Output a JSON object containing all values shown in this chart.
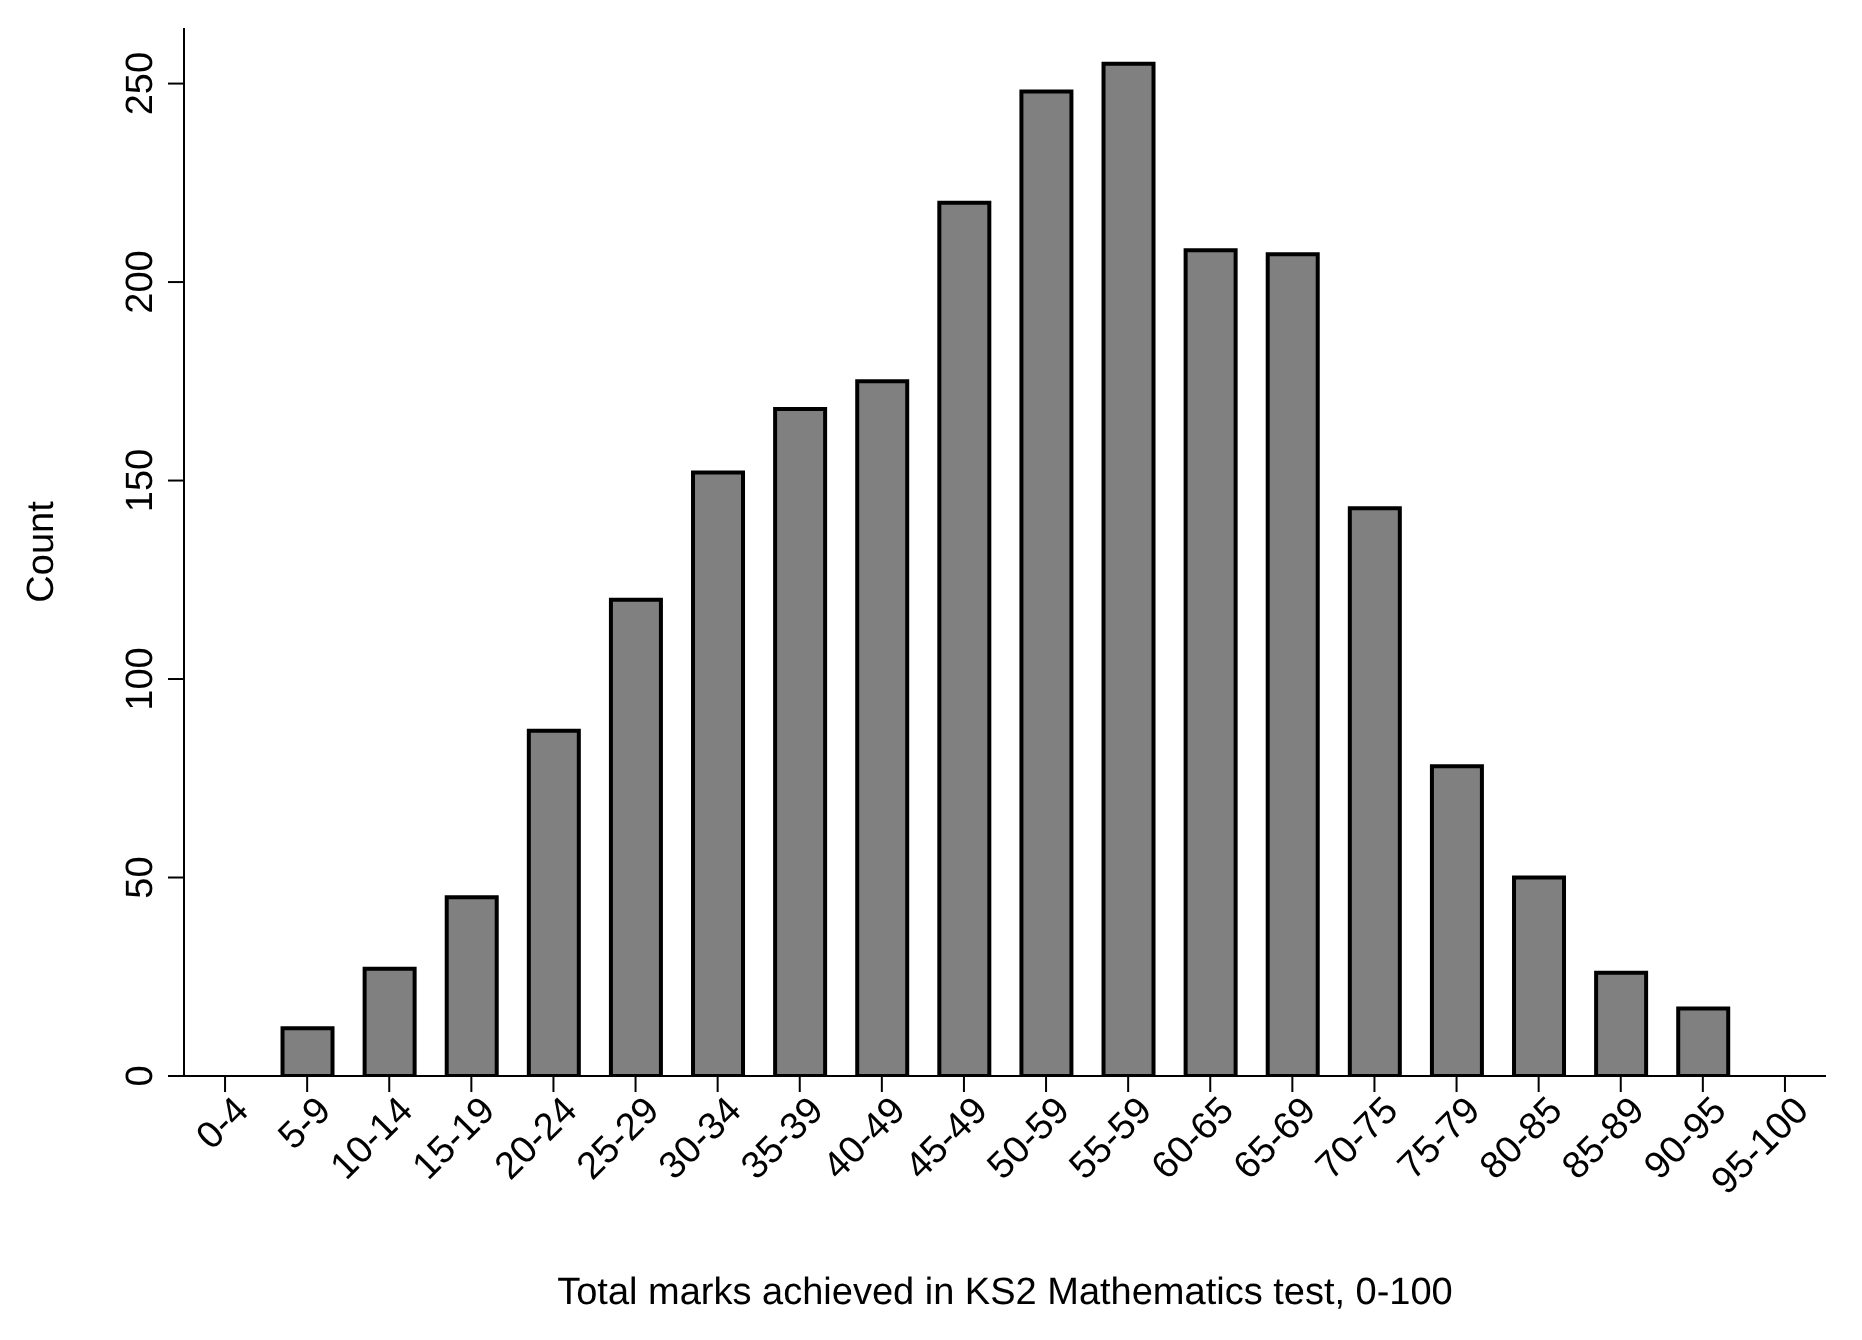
{
  "chart_data": {
    "type": "bar",
    "xlabel": "Total marks achieved in KS2 Mathematics test, 0-100",
    "ylabel": "Count",
    "categories": [
      "0-4",
      "5-9",
      "10-14",
      "15-19",
      "20-24",
      "25-29",
      "30-34",
      "35-39",
      "40-49",
      "45-49",
      "50-59",
      "55-59",
      "60-65",
      "65-69",
      "70-75",
      "75-79",
      "80-85",
      "85-89",
      "90-95",
      "95-100"
    ],
    "values": [
      0,
      12,
      27,
      45,
      87,
      120,
      152,
      168,
      175,
      220,
      248,
      255,
      208,
      207,
      143,
      78,
      50,
      26,
      17,
      0
    ],
    "color": "#808080",
    "ylim": [
      0,
      264
    ],
    "yticks": [
      0,
      50,
      100,
      150,
      200,
      250
    ]
  }
}
